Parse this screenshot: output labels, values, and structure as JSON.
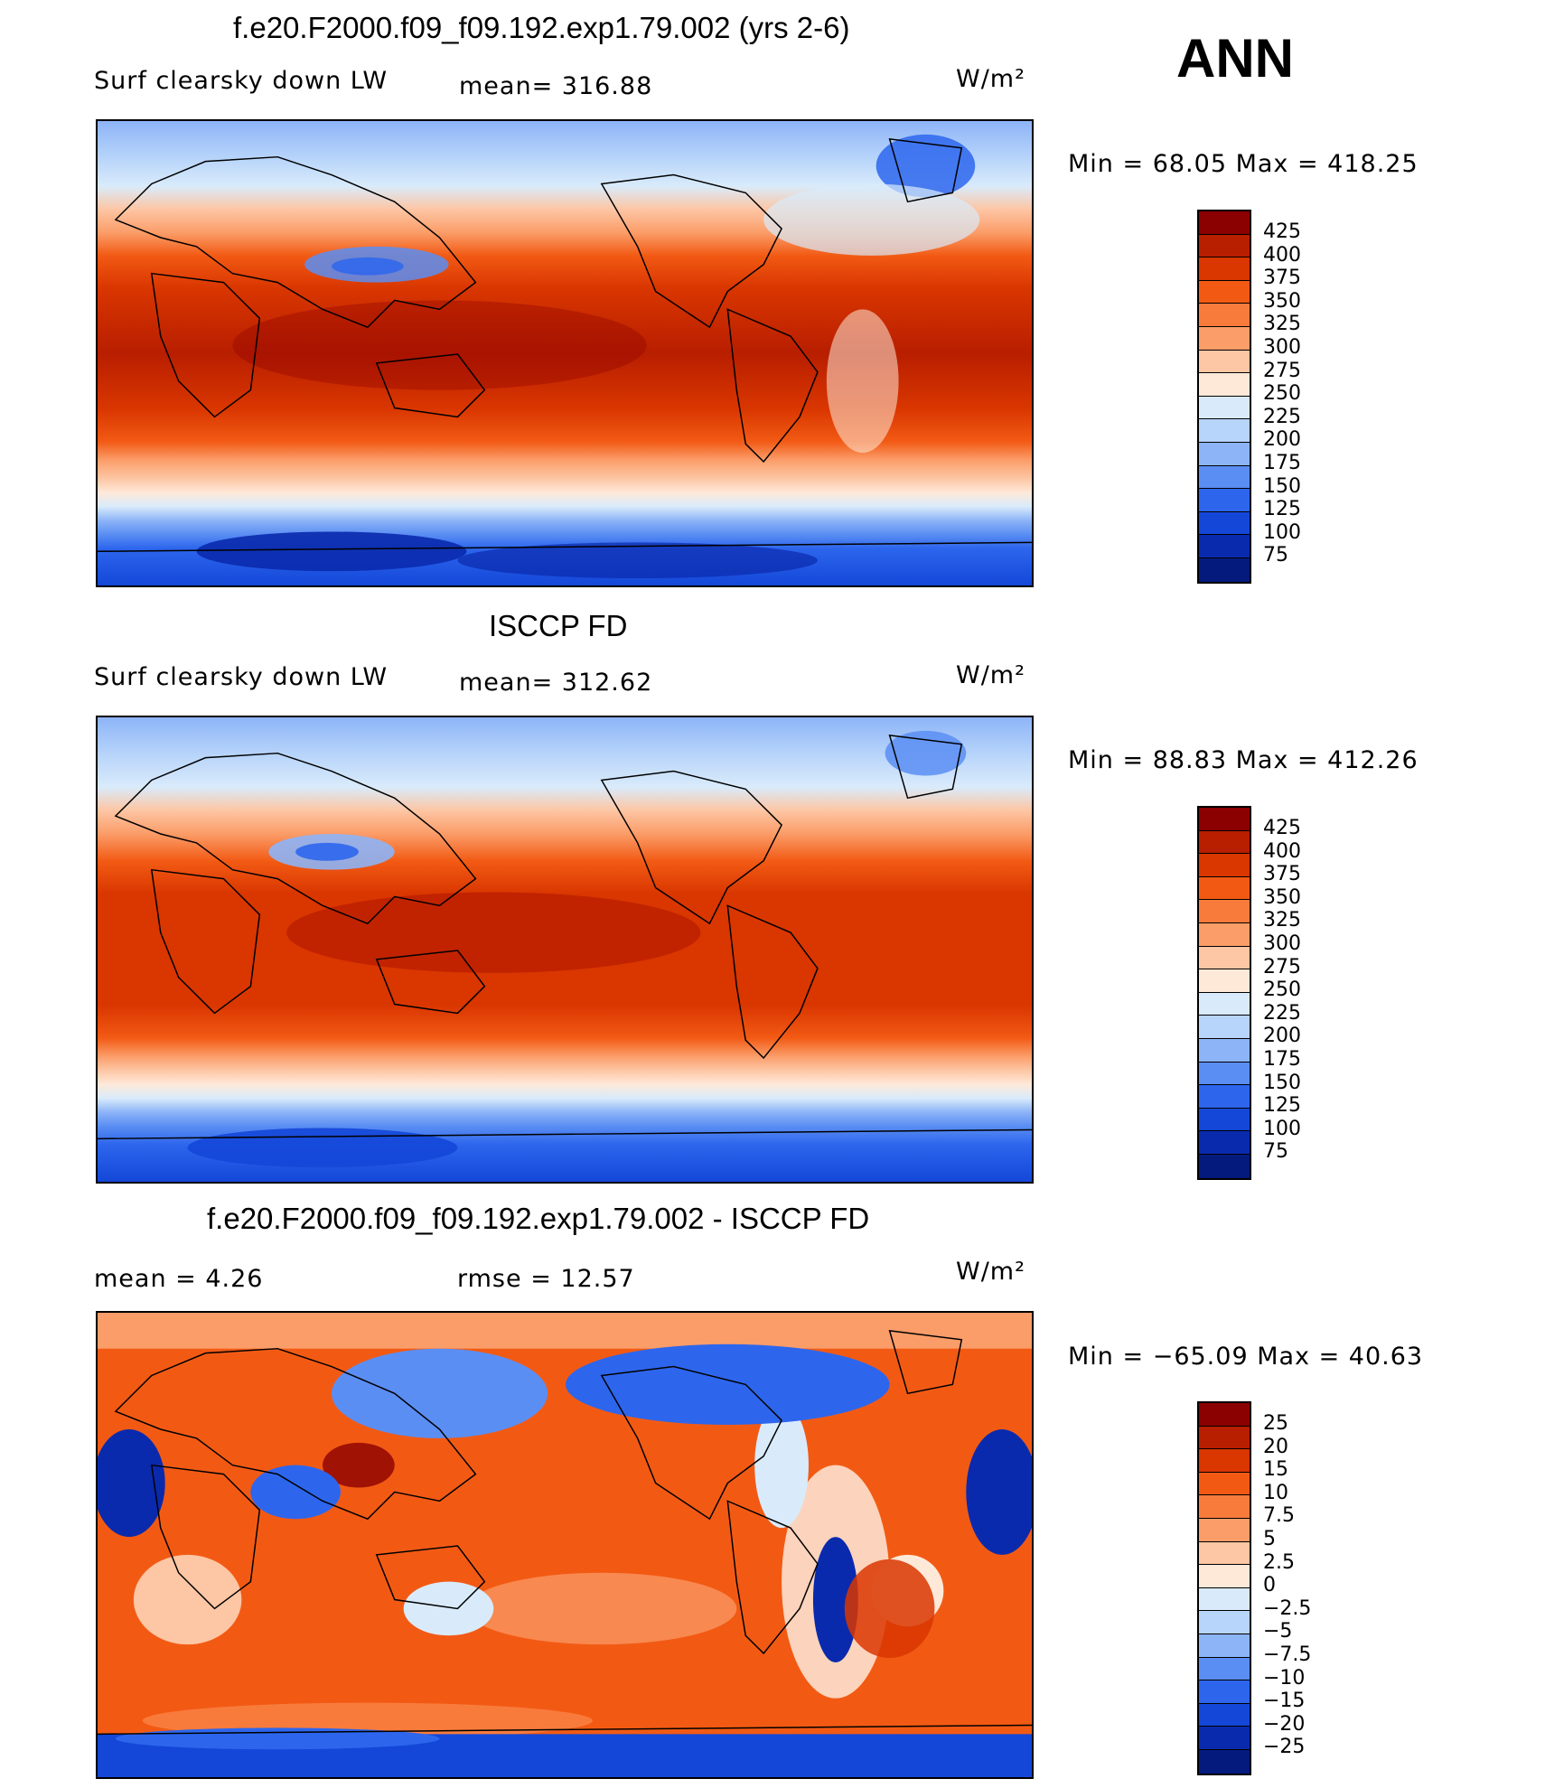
{
  "season": "ANN",
  "units": "W/m²",
  "panels": [
    {
      "title": "f.e20.F2000.f09_f09.192.exp1.79.002 (yrs 2-6)",
      "left_label": "Surf clearsky down LW",
      "stat_label": "mean= 316.88",
      "units": "W/m²",
      "min_max": "Min =   68.05 Max = 418.25",
      "map": "model",
      "colorbar": {
        "levels": [
          "425",
          "400",
          "375",
          "350",
          "325",
          "300",
          "275",
          "250",
          "225",
          "200",
          "175",
          "150",
          "125",
          "100",
          "75"
        ],
        "colors": [
          "#8b0000",
          "#b81e00",
          "#d93600",
          "#f25a14",
          "#f87b3c",
          "#fb9d69",
          "#fdc6a4",
          "#fee9d9",
          "#d9ebfb",
          "#b7d4fa",
          "#8db4f7",
          "#5b8ef3",
          "#2d66ed",
          "#1447d8",
          "#0a2aad",
          "#041a7c"
        ]
      }
    },
    {
      "title": "ISCCP FD",
      "left_label": "Surf clearsky down LW",
      "stat_label": "mean= 312.62",
      "units": "W/m²",
      "min_max": "Min =   88.83 Max = 412.26",
      "map": "obs",
      "colorbar": {
        "levels": [
          "425",
          "400",
          "375",
          "350",
          "325",
          "300",
          "275",
          "250",
          "225",
          "200",
          "175",
          "150",
          "125",
          "100",
          "75"
        ],
        "colors": [
          "#8b0000",
          "#b81e00",
          "#d93600",
          "#f25a14",
          "#f87b3c",
          "#fb9d69",
          "#fdc6a4",
          "#fee9d9",
          "#d9ebfb",
          "#b7d4fa",
          "#8db4f7",
          "#5b8ef3",
          "#2d66ed",
          "#1447d8",
          "#0a2aad",
          "#041a7c"
        ]
      }
    },
    {
      "title": "f.e20.F2000.f09_f09.192.exp1.79.002 - ISCCP FD",
      "left_label": "mean =    4.26",
      "stat_label": "rmse =   12.57",
      "units": "W/m²",
      "min_max": "Min = −65.09 Max =   40.63",
      "map": "diff",
      "colorbar": {
        "levels": [
          "25",
          "20",
          "15",
          "10",
          "7.5",
          "5",
          "2.5",
          "0",
          "−2.5",
          "−5",
          "−7.5",
          "−10",
          "−15",
          "−20",
          "−25"
        ],
        "colors": [
          "#8b0000",
          "#b81e00",
          "#d93600",
          "#f25a14",
          "#f87b3c",
          "#fb9d69",
          "#fdc6a4",
          "#fee9d9",
          "#d9ebfb",
          "#b7d4fa",
          "#8db4f7",
          "#5b8ef3",
          "#2d66ed",
          "#1447d8",
          "#0a2aad",
          "#041a7c"
        ]
      }
    }
  ]
}
